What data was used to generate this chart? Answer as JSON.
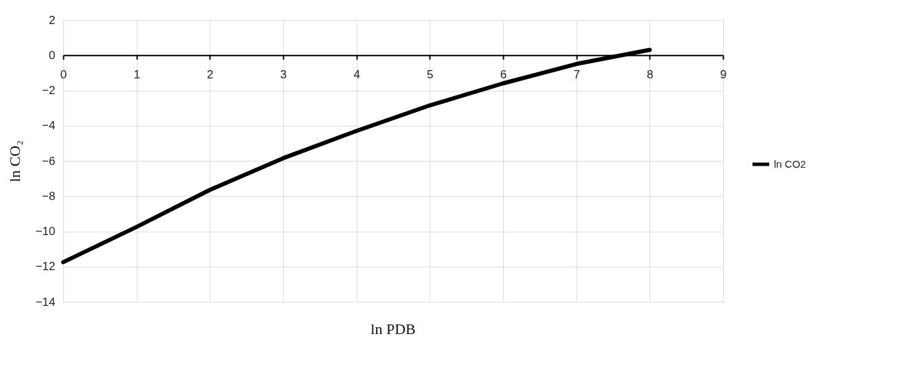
{
  "chart_data": {
    "type": "line",
    "xlabel": "ln PDB",
    "ylabel": "ln CO₂",
    "x": [
      0,
      1,
      2,
      3,
      4,
      5,
      6,
      7,
      8
    ],
    "series": [
      {
        "name": "ln CO2",
        "color": "#000000",
        "values": [
          -11.75,
          -9.75,
          -7.65,
          -5.85,
          -4.3,
          -2.85,
          -1.6,
          -0.5,
          0.3
        ]
      }
    ],
    "xlim": [
      0,
      9
    ],
    "xticks": [
      0,
      1,
      2,
      3,
      4,
      5,
      6,
      7,
      8,
      9
    ],
    "ylim": [
      -14,
      2
    ],
    "yticks": [
      -14,
      -12,
      -10,
      -8,
      -6,
      -4,
      -2,
      0,
      2
    ],
    "grid": true,
    "legend": "right",
    "marker": "none",
    "line_style": "solid"
  }
}
